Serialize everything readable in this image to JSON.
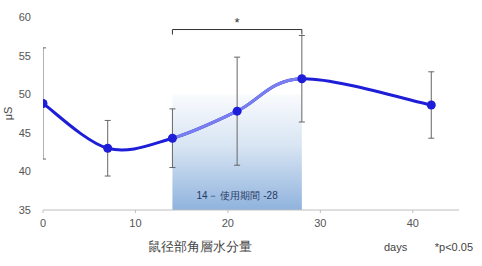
{
  "chart_data": {
    "type": "line",
    "x_label": "鼠径部角層水分量",
    "y_label": "μS",
    "x_unit_label": "days",
    "footnote": "*p<0.05",
    "x": [
      0,
      7,
      14,
      21,
      28,
      42
    ],
    "values": [
      48.8,
      43.0,
      44.3,
      47.8,
      52.0,
      48.6
    ],
    "errors": [
      7.2,
      3.6,
      3.8,
      7.0,
      5.6,
      4.3
    ],
    "color": "#1e1ed8",
    "marker": "circle",
    "line_style": "smooth",
    "xlim": [
      0,
      45
    ],
    "ylim": [
      35,
      60
    ],
    "xticks": [
      0,
      10,
      20,
      30,
      40
    ],
    "yticks": [
      35,
      40,
      45,
      50,
      55,
      60
    ],
    "grid": false,
    "span": {
      "x": [
        14,
        28
      ],
      "text": "14－ 使用期間 -28",
      "color": "#8fb3dd"
    },
    "bracket": {
      "x": [
        14,
        28
      ],
      "text": "*"
    }
  }
}
